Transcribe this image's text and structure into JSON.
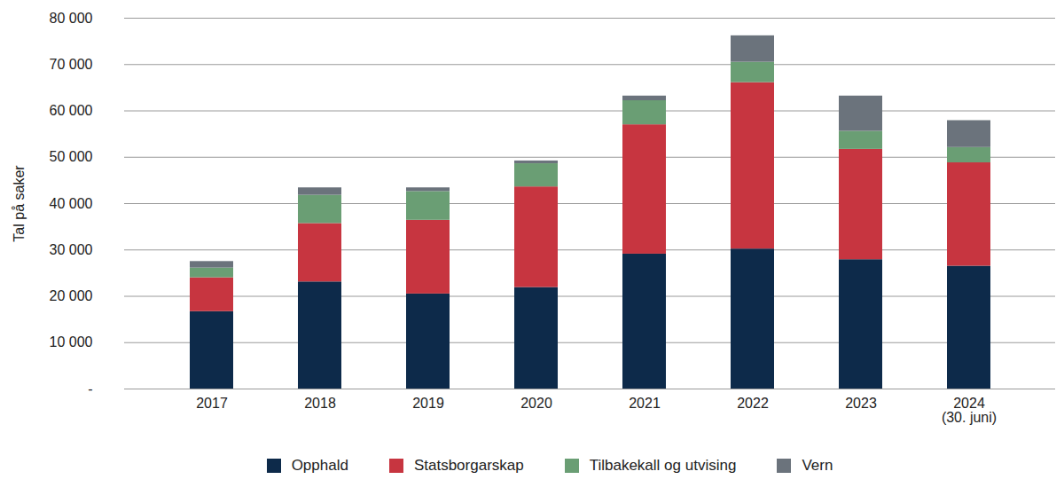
{
  "chart_data": {
    "type": "bar",
    "stacked": true,
    "y_label": "Tal på saker",
    "categories": [
      "2017",
      "2018",
      "2019",
      "2020",
      "2021",
      "2022",
      "2023",
      "2024\n(30. juni)"
    ],
    "series": [
      {
        "name": "Opphald",
        "color": "#0d2a4a",
        "values": [
          16700,
          23100,
          20500,
          21900,
          29100,
          30200,
          27900,
          26500
        ]
      },
      {
        "name": "Statsborgarskap",
        "color": "#c73540",
        "values": [
          7300,
          12600,
          15900,
          21700,
          27900,
          35900,
          23800,
          22300
        ]
      },
      {
        "name": "Tilbakekall og utvising",
        "color": "#6a9e74",
        "values": [
          2100,
          6100,
          6200,
          5000,
          5200,
          4400,
          3900,
          3300
        ]
      },
      {
        "name": "Vern",
        "color": "#6b737c",
        "values": [
          1400,
          1600,
          800,
          600,
          1000,
          5700,
          7600,
          5800
        ]
      }
    ],
    "ylim": [
      0,
      80000
    ],
    "yticks": [
      {
        "value": 0,
        "label": "-"
      },
      {
        "value": 10000,
        "label": "10 000"
      },
      {
        "value": 20000,
        "label": "20 000"
      },
      {
        "value": 30000,
        "label": "30 000"
      },
      {
        "value": 40000,
        "label": "40 000"
      },
      {
        "value": 50000,
        "label": "50 000"
      },
      {
        "value": 60000,
        "label": "60 000"
      },
      {
        "value": 70000,
        "label": "70 000"
      },
      {
        "value": 80000,
        "label": "80 000"
      }
    ],
    "grid": true,
    "legend": "bottom"
  }
}
